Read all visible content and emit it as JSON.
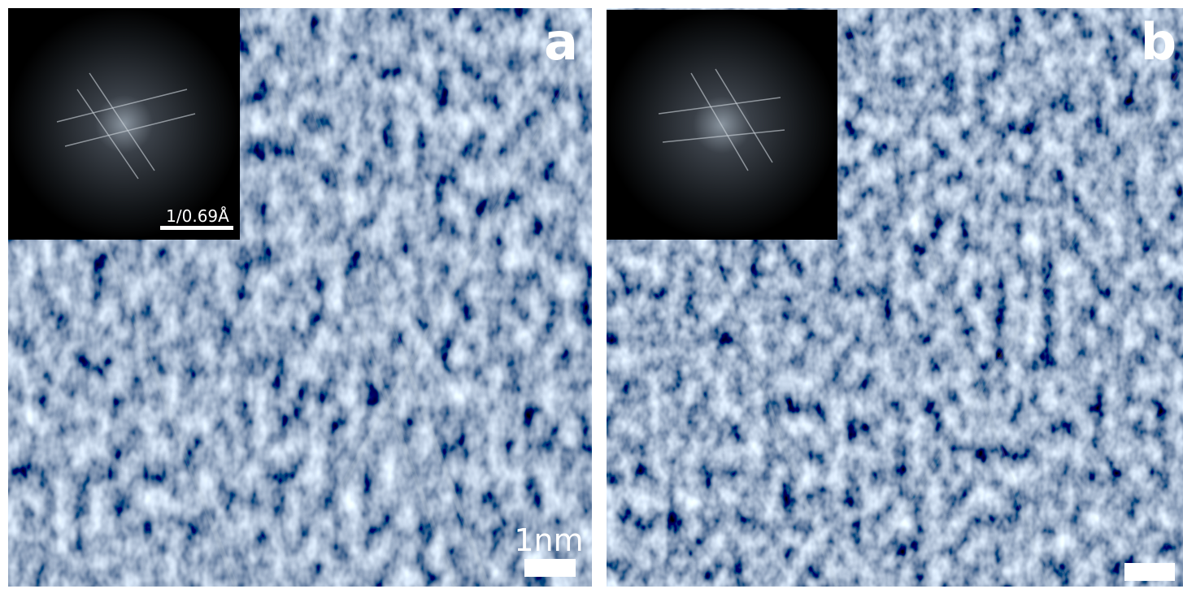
{
  "panels": [
    {
      "label": "a",
      "fft_scale_label": "1/0.69Å",
      "scale_label": "1nm"
    },
    {
      "label": "b"
    }
  ]
}
